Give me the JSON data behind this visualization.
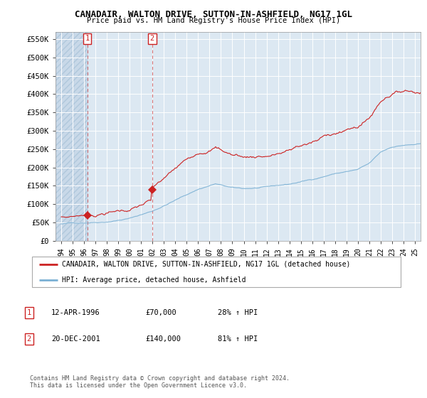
{
  "title": "CANADAIR, WALTON DRIVE, SUTTON-IN-ASHFIELD, NG17 1GL",
  "subtitle": "Price paid vs. HM Land Registry's House Price Index (HPI)",
  "hpi_color": "#7ab0d4",
  "price_color": "#cc2222",
  "background_color": "#dce8f2",
  "hatch_color": "#c8d8e8",
  "grid_color": "#ffffff",
  "ylim": [
    0,
    570000
  ],
  "yticks": [
    0,
    50000,
    100000,
    150000,
    200000,
    250000,
    300000,
    350000,
    400000,
    450000,
    500000,
    550000
  ],
  "ytick_labels": [
    "£0",
    "£50K",
    "£100K",
    "£150K",
    "£200K",
    "£250K",
    "£300K",
    "£350K",
    "£400K",
    "£450K",
    "£500K",
    "£550K"
  ],
  "xlim_start": 1993.5,
  "xlim_end": 2025.5,
  "xtick_years": [
    1994,
    1995,
    1996,
    1997,
    1998,
    1999,
    2000,
    2001,
    2002,
    2003,
    2004,
    2005,
    2006,
    2007,
    2008,
    2009,
    2010,
    2011,
    2012,
    2013,
    2014,
    2015,
    2016,
    2017,
    2018,
    2019,
    2020,
    2021,
    2022,
    2023,
    2024,
    2025
  ],
  "sale1_x": 1996.28,
  "sale1_y": 70000,
  "sale2_x": 2001.97,
  "sale2_y": 140000,
  "legend_property": "CANADAIR, WALTON DRIVE, SUTTON-IN-ASHFIELD, NG17 1GL (detached house)",
  "legend_hpi": "HPI: Average price, detached house, Ashfield",
  "table_rows": [
    [
      "1",
      "12-APR-1996",
      "£70,000",
      "28% ↑ HPI"
    ],
    [
      "2",
      "20-DEC-2001",
      "£140,000",
      "81% ↑ HPI"
    ]
  ],
  "footnote": "Contains HM Land Registry data © Crown copyright and database right 2024.\nThis data is licensed under the Open Government Licence v3.0."
}
